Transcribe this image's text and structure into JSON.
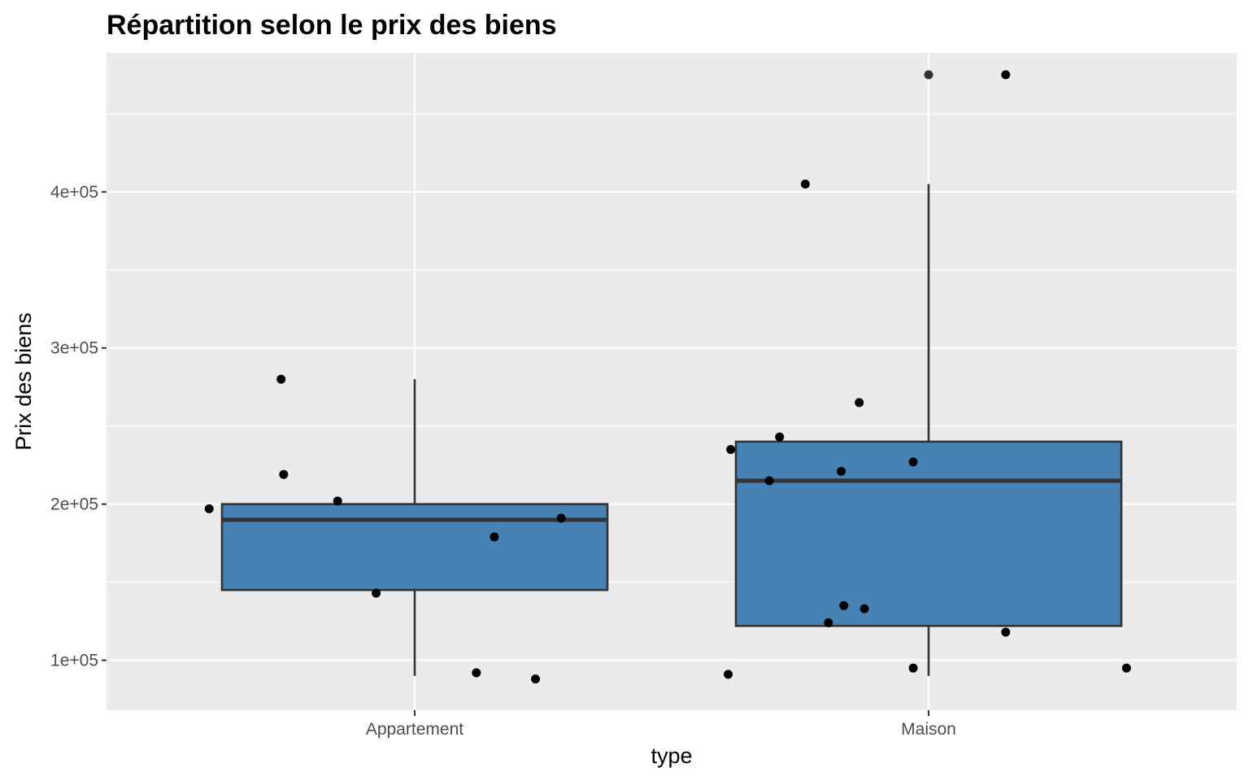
{
  "chart_data": {
    "type": "boxplot",
    "title": "Répartition selon le prix des biens",
    "xlabel": "type",
    "ylabel": "Prix des biens",
    "categories": [
      "Appartement",
      "Maison"
    ],
    "ylim": [
      68000,
      489000
    ],
    "yticks": [
      100000,
      200000,
      300000,
      400000
    ],
    "ytick_labels": [
      "1e+05",
      "2e+05",
      "3e+05",
      "4e+05"
    ],
    "grid": true,
    "box_fill": "#4682b4",
    "box_stroke": "#333333",
    "panel_background": "#ebebeb",
    "point_color": "#000000",
    "boxes": [
      {
        "category": "Appartement",
        "whisker_low": 90000,
        "q1": 145000,
        "median": 190000,
        "q3": 200000,
        "whisker_high": 280000,
        "outliers": []
      },
      {
        "category": "Maison",
        "whisker_low": 90000,
        "q1": 122000,
        "median": 215000,
        "q3": 240000,
        "whisker_high": 405000,
        "outliers": [
          475000
        ]
      }
    ],
    "points": [
      {
        "category": "Appartement",
        "jitter": -0.4,
        "y": 197000
      },
      {
        "category": "Appartement",
        "jitter": -0.26,
        "y": 280000
      },
      {
        "category": "Appartement",
        "jitter": -0.255,
        "y": 219000
      },
      {
        "category": "Appartement",
        "jitter": -0.15,
        "y": 202000
      },
      {
        "category": "Appartement",
        "jitter": -0.075,
        "y": 143000
      },
      {
        "category": "Appartement",
        "jitter": 0.12,
        "y": 92000
      },
      {
        "category": "Appartement",
        "jitter": 0.155,
        "y": 179000
      },
      {
        "category": "Appartement",
        "jitter": 0.235,
        "y": 88000
      },
      {
        "category": "Appartement",
        "jitter": 0.285,
        "y": 191000
      },
      {
        "category": "Maison",
        "jitter": -0.39,
        "y": 91000
      },
      {
        "category": "Maison",
        "jitter": -0.385,
        "y": 235000
      },
      {
        "category": "Maison",
        "jitter": -0.31,
        "y": 215000
      },
      {
        "category": "Maison",
        "jitter": -0.29,
        "y": 243000
      },
      {
        "category": "Maison",
        "jitter": -0.24,
        "y": 405000
      },
      {
        "category": "Maison",
        "jitter": -0.195,
        "y": 124000
      },
      {
        "category": "Maison",
        "jitter": -0.17,
        "y": 221000
      },
      {
        "category": "Maison",
        "jitter": -0.165,
        "y": 135000
      },
      {
        "category": "Maison",
        "jitter": -0.135,
        "y": 265000
      },
      {
        "category": "Maison",
        "jitter": -0.125,
        "y": 133000
      },
      {
        "category": "Maison",
        "jitter": -0.03,
        "y": 95000
      },
      {
        "category": "Maison",
        "jitter": -0.03,
        "y": 227000
      },
      {
        "category": "Maison",
        "jitter": 0.15,
        "y": 475000
      },
      {
        "category": "Maison",
        "jitter": 0.15,
        "y": 118000
      },
      {
        "category": "Maison",
        "jitter": 0.385,
        "y": 95000
      }
    ]
  }
}
